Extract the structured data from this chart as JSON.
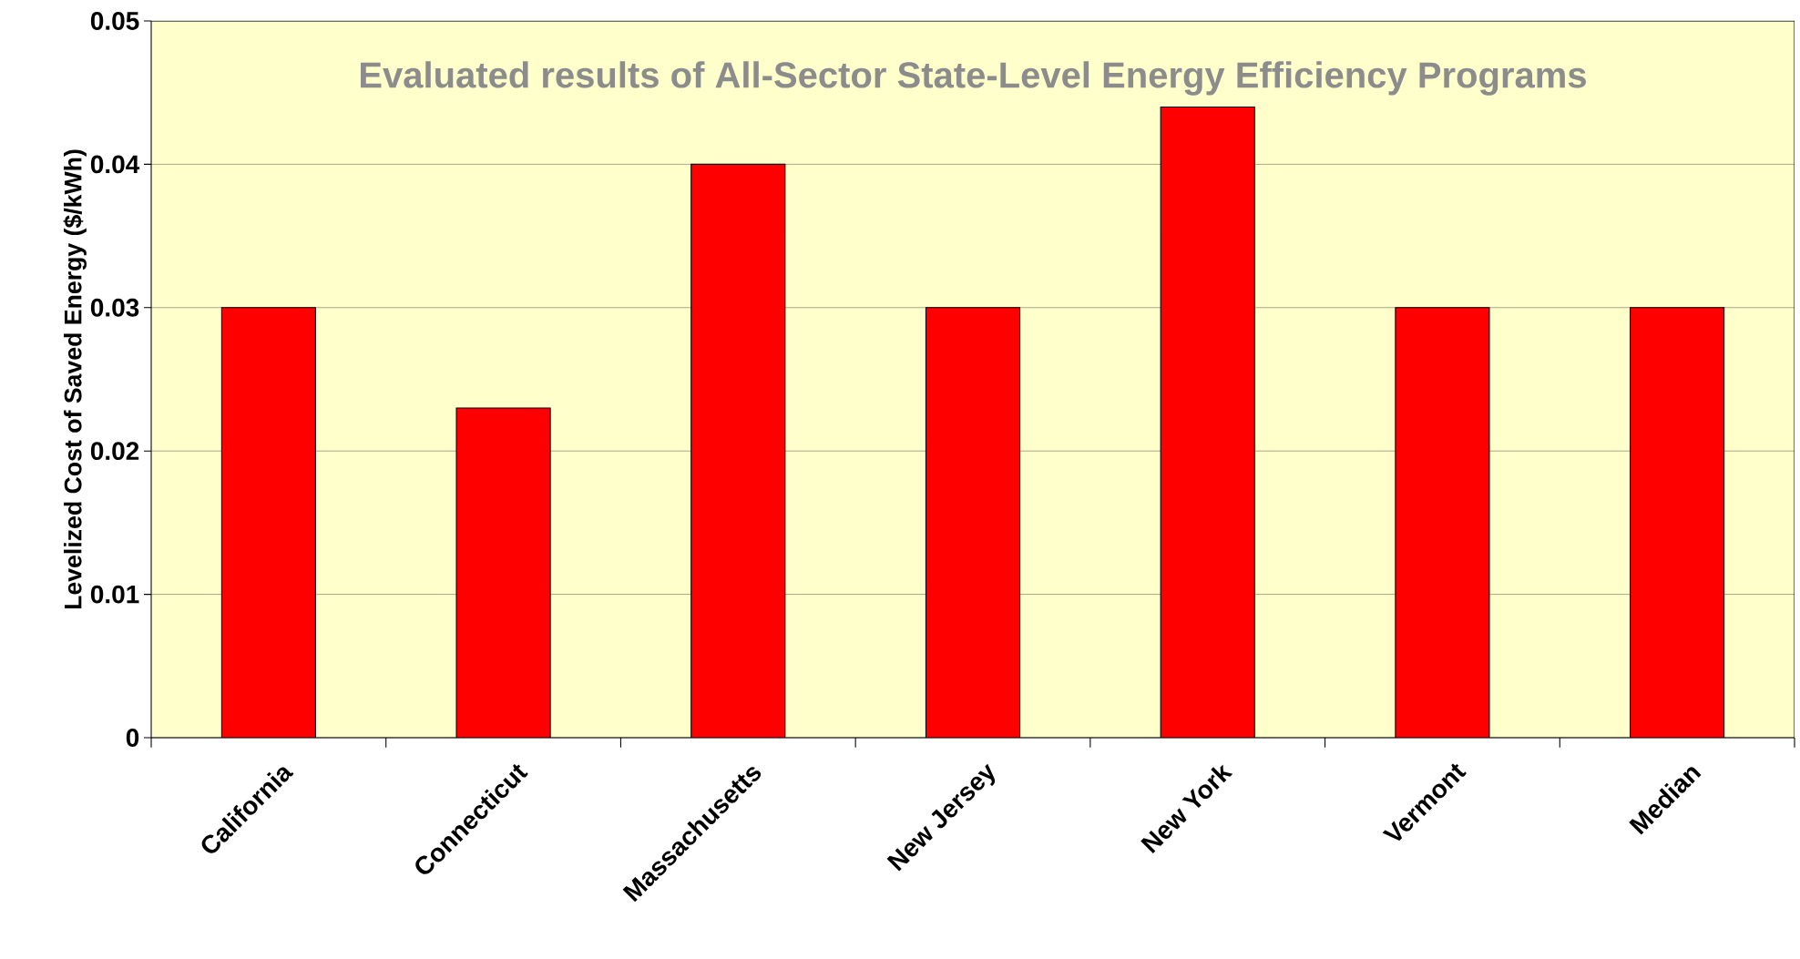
{
  "chart_data": {
    "type": "bar",
    "title": "Evaluated results of All-Sector State-Level Energy Efficiency Programs",
    "ylabel": "Levelized Cost of Saved Energy ($/kWh)",
    "categories": [
      "California",
      "Connecticut",
      "Massachusetts",
      "New Jersey",
      "New York",
      "Vermont",
      "Median"
    ],
    "values": [
      0.03,
      0.023,
      0.04,
      0.03,
      0.044,
      0.03,
      0.03
    ],
    "color": "#ff0000",
    "ylim": [
      0,
      0.05
    ],
    "yticks": [
      0,
      0.01,
      0.02,
      0.03,
      0.04,
      0.05
    ],
    "grid": "y"
  }
}
